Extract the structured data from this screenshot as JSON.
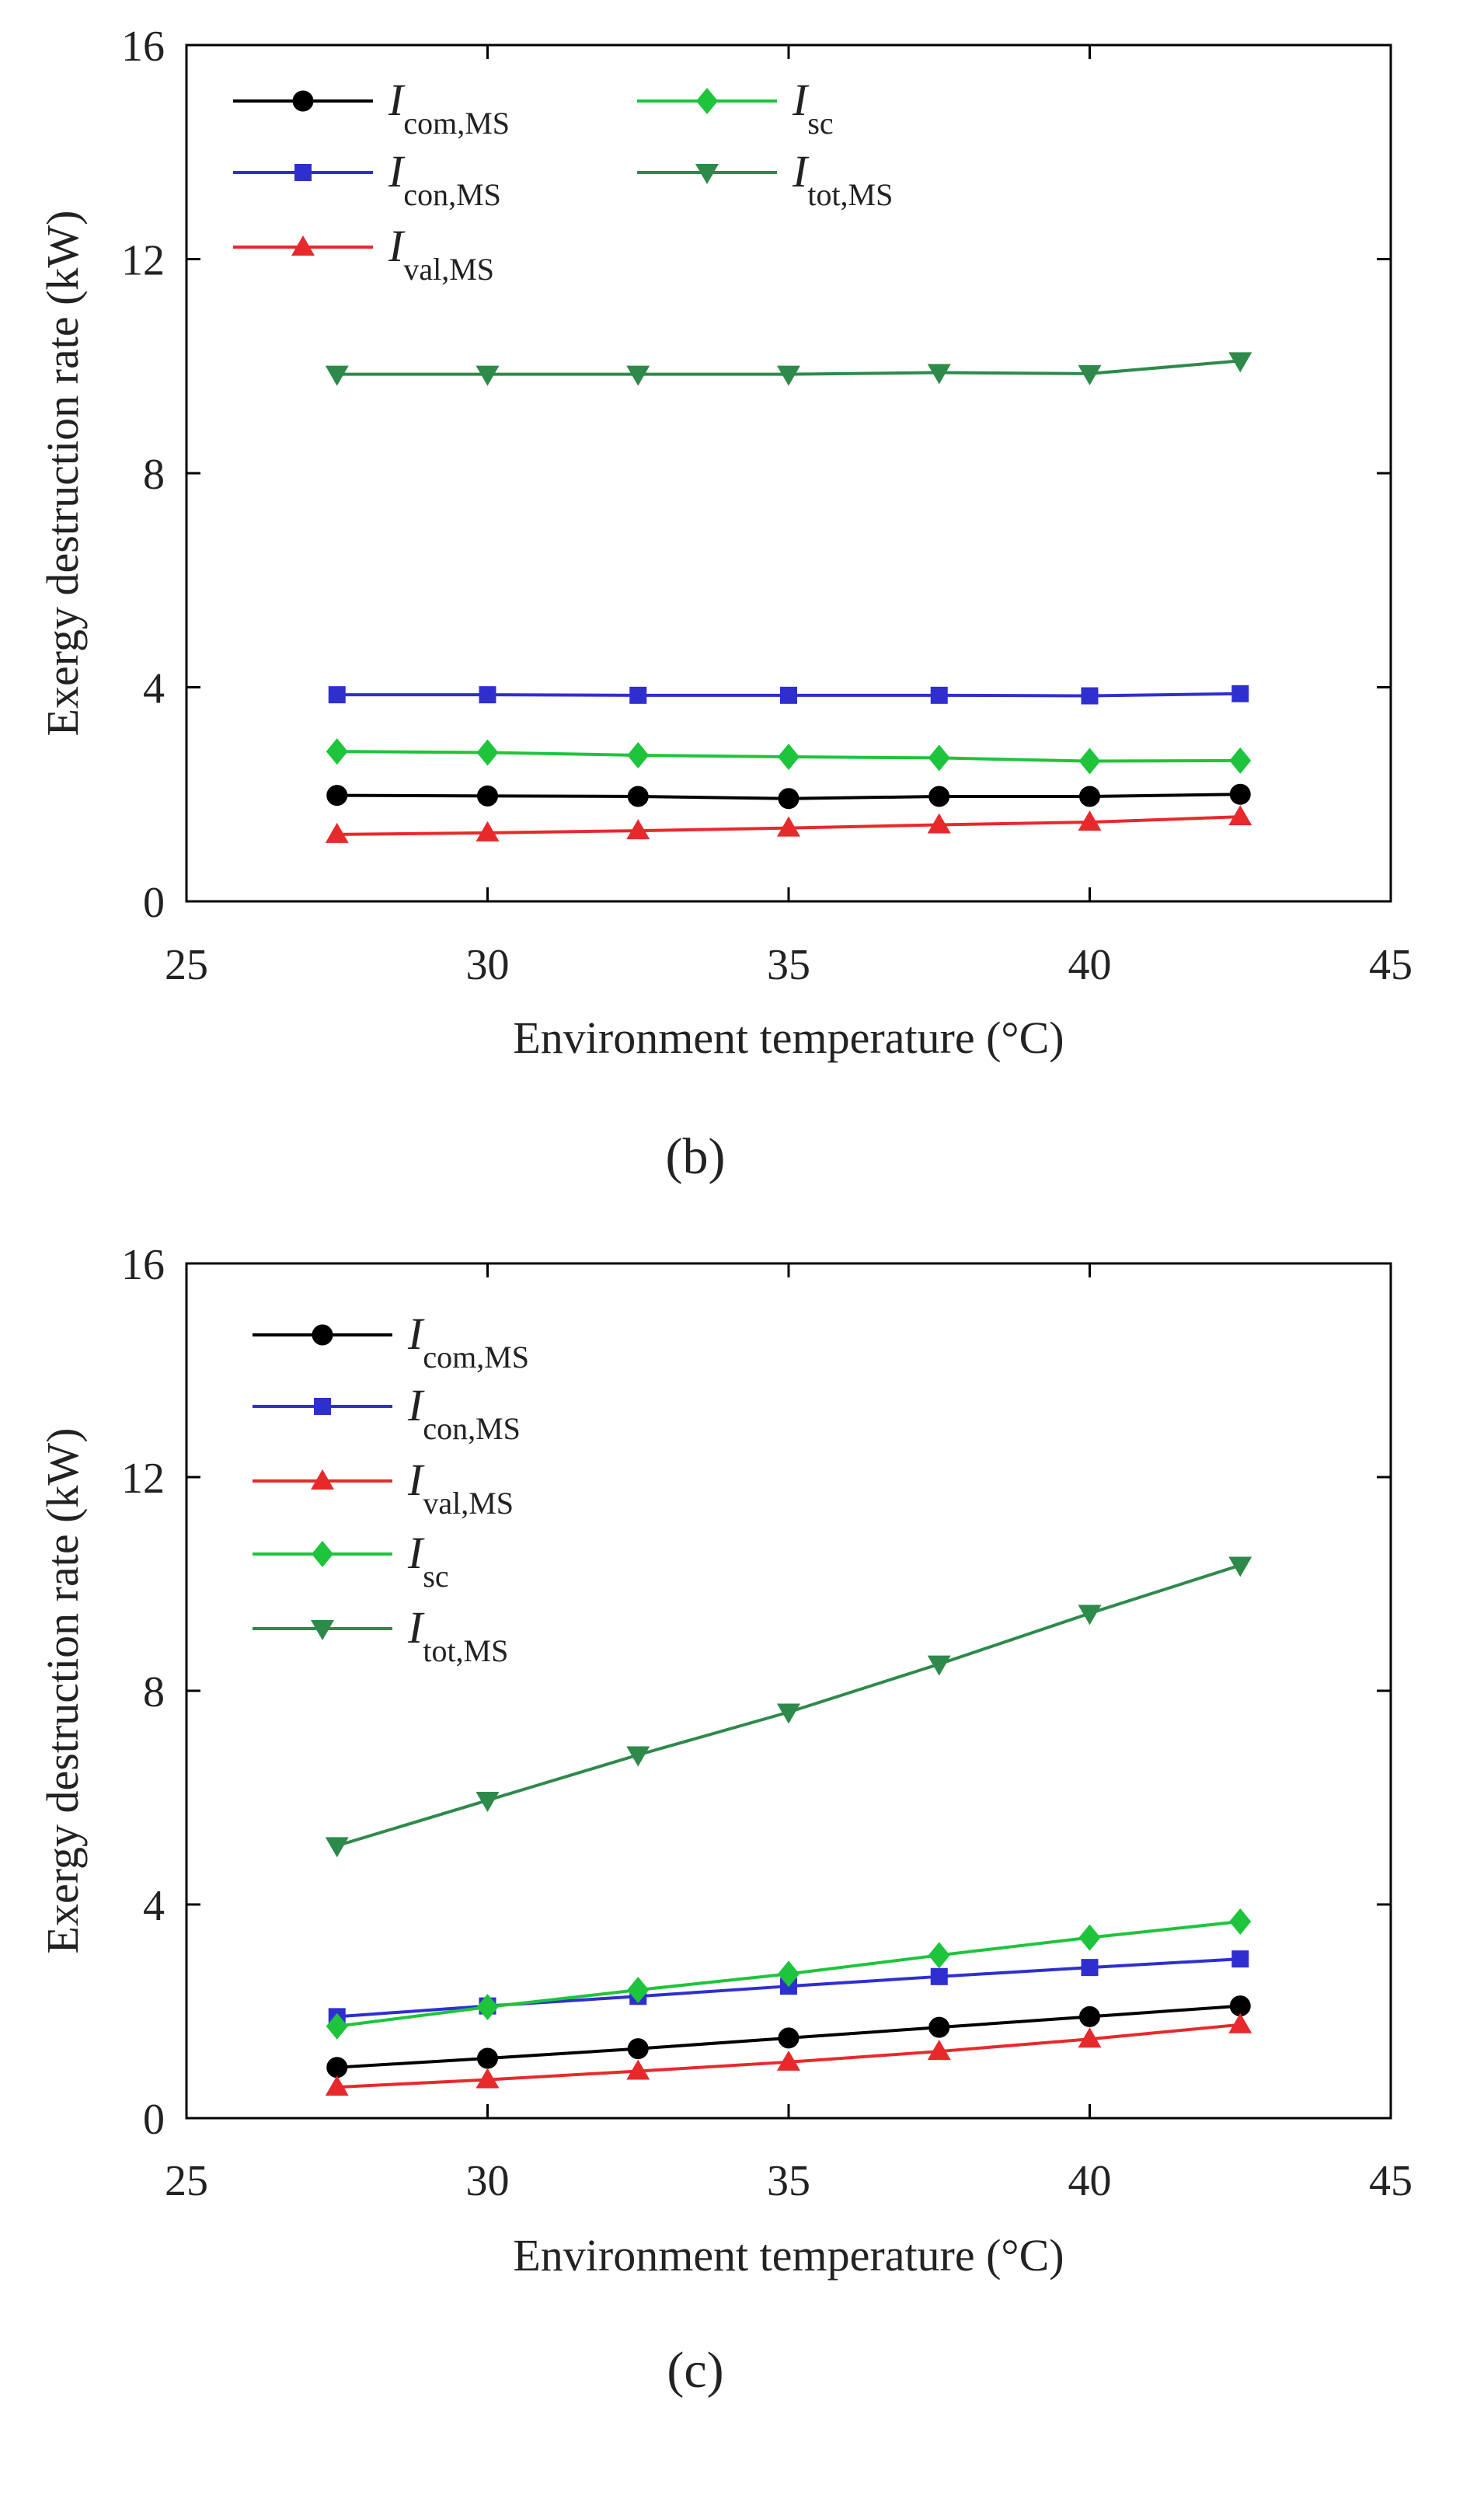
{
  "chart_data": [
    {
      "type": "line",
      "panel_label": "(b)",
      "xlabel": "Environment temperature (°C)",
      "ylabel": "Exergy destruction rate (kW)",
      "xlim": [
        25,
        45
      ],
      "ylim": [
        0,
        16
      ],
      "xticks": [
        "25",
        "30",
        "35",
        "40",
        "45"
      ],
      "yticks": [
        "0",
        "4",
        "8",
        "12",
        "16"
      ],
      "grid": false,
      "legend_position": "top-left, two columns",
      "x": [
        27.5,
        30,
        32.5,
        35,
        37.5,
        40,
        42.5
      ],
      "series": [
        {
          "id": "com",
          "name": "I",
          "subscript": "com,MS",
          "color": "#000000",
          "marker": "circle",
          "values": [
            1.98,
            1.97,
            1.96,
            1.92,
            1.96,
            1.96,
            2.0
          ]
        },
        {
          "id": "con",
          "name": "I",
          "subscript": "con,MS",
          "color": "#2f2fd0",
          "marker": "square",
          "values": [
            3.86,
            3.86,
            3.85,
            3.85,
            3.85,
            3.84,
            3.88
          ]
        },
        {
          "id": "val",
          "name": "I",
          "subscript": "val,MS",
          "color": "#e8292b",
          "marker": "triangle-up",
          "values": [
            1.25,
            1.28,
            1.32,
            1.37,
            1.43,
            1.48,
            1.58
          ]
        },
        {
          "id": "sc",
          "name": "I",
          "subscript": "sc",
          "color": "#1ec43c",
          "marker": "diamond",
          "values": [
            2.8,
            2.78,
            2.73,
            2.7,
            2.68,
            2.62,
            2.63
          ]
        },
        {
          "id": "tot",
          "name": "I",
          "subscript": "tot,MS",
          "color": "#2e8a4a",
          "marker": "triangle-down",
          "values": [
            9.85,
            9.85,
            9.85,
            9.85,
            9.88,
            9.86,
            10.1
          ]
        }
      ]
    },
    {
      "type": "line",
      "panel_label": "(c)",
      "xlabel": "Environment temperature (°C)",
      "ylabel": "Exergy destruction rate (kW)",
      "xlim": [
        25,
        45
      ],
      "ylim": [
        0,
        16
      ],
      "xticks": [
        "25",
        "30",
        "35",
        "40",
        "45"
      ],
      "yticks": [
        "0",
        "4",
        "8",
        "12",
        "16"
      ],
      "grid": false,
      "legend_position": "top-left, one column",
      "x": [
        27.5,
        30,
        32.5,
        35,
        37.5,
        40,
        42.5
      ],
      "series": [
        {
          "id": "com",
          "name": "I",
          "subscript": "com,MS",
          "color": "#000000",
          "marker": "circle",
          "values": [
            0.95,
            1.12,
            1.3,
            1.5,
            1.7,
            1.9,
            2.1
          ]
        },
        {
          "id": "con",
          "name": "I",
          "subscript": "con,MS",
          "color": "#2f2fd0",
          "marker": "square",
          "values": [
            1.9,
            2.1,
            2.28,
            2.47,
            2.65,
            2.82,
            2.98
          ]
        },
        {
          "id": "val",
          "name": "I",
          "subscript": "val,MS",
          "color": "#e8292b",
          "marker": "triangle-up",
          "values": [
            0.58,
            0.72,
            0.88,
            1.05,
            1.25,
            1.48,
            1.75
          ]
        },
        {
          "id": "sc",
          "name": "I",
          "subscript": "sc",
          "color": "#1ec43c",
          "marker": "diamond",
          "values": [
            1.72,
            2.08,
            2.4,
            2.7,
            3.05,
            3.38,
            3.68
          ]
        },
        {
          "id": "tot",
          "name": "I",
          "subscript": "tot,MS",
          "color": "#2e8a4a",
          "marker": "triangle-down",
          "values": [
            5.1,
            5.95,
            6.8,
            7.6,
            8.5,
            9.45,
            10.35
          ]
        }
      ]
    }
  ]
}
